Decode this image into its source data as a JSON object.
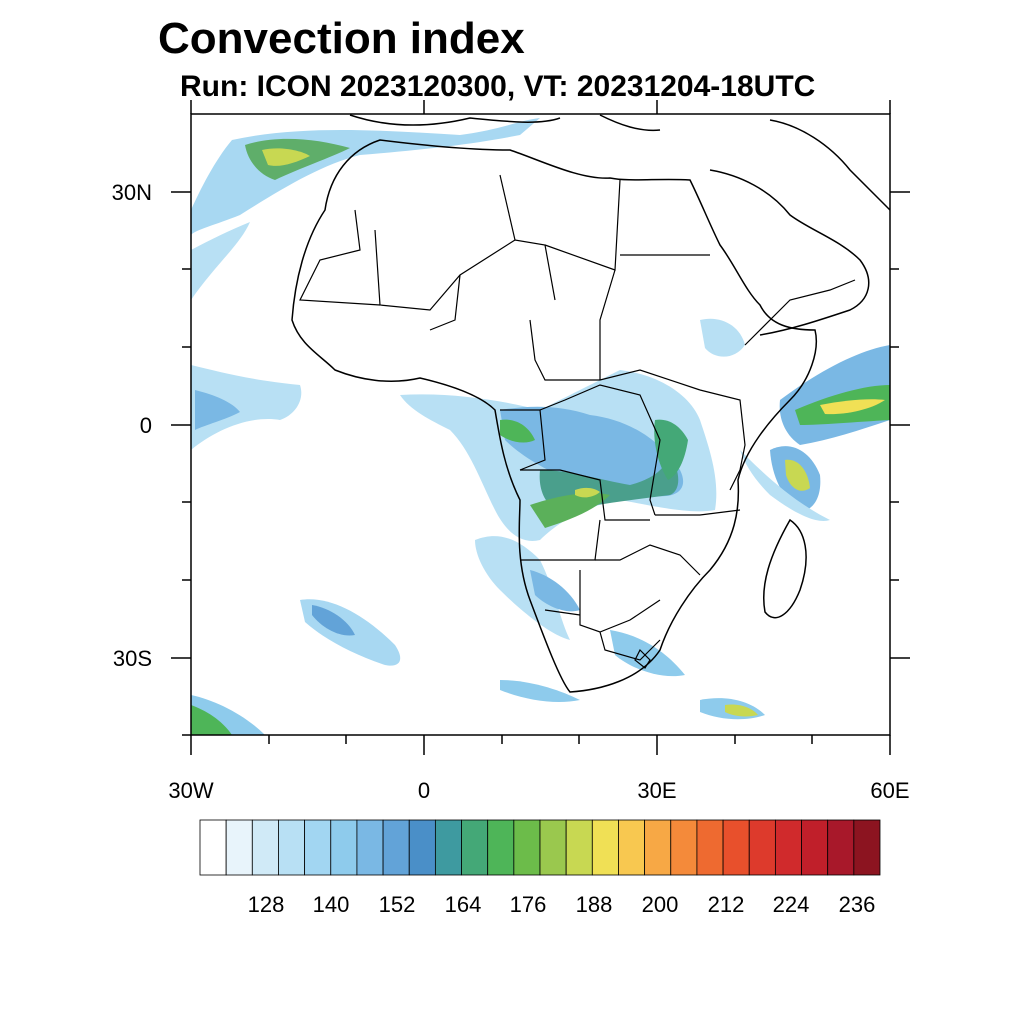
{
  "title": "Convection index",
  "subtitle": "Run: ICON 2023120300,  VT: 20231204-18UTC",
  "axes": {
    "lon_labels": [
      "30W",
      "0",
      "30E",
      "60E"
    ],
    "lat_labels": [
      "30N",
      "0",
      "30S"
    ]
  },
  "colorbar": {
    "labels": [
      "128",
      "140",
      "152",
      "164",
      "176",
      "188",
      "200",
      "212",
      "224",
      "236"
    ],
    "colors": [
      "#ffffff",
      "#e8f4fb",
      "#d0eaf7",
      "#b8e0f4",
      "#a2d6f2",
      "#8ecbec",
      "#7ab8e4",
      "#62a3d8",
      "#4a8fc8",
      "#3e9aa0",
      "#44a877",
      "#4eb558",
      "#6cbc4a",
      "#9ac84e",
      "#c8d852",
      "#f0e055",
      "#f8c850",
      "#f7a845",
      "#f48a3a",
      "#ee6a30",
      "#e8502c",
      "#dd3a2c",
      "#d02a2c",
      "#c01f2a",
      "#a8182a",
      "#8c1420"
    ]
  }
}
